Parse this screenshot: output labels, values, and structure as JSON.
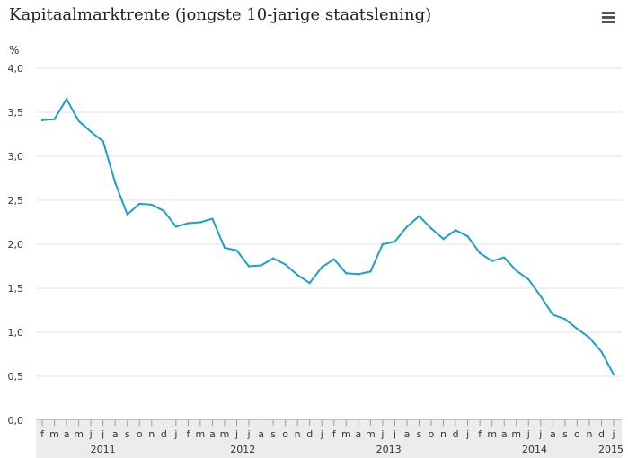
{
  "title": "Kapitaalmarktrente (jongste 10-jarige staatslening)",
  "menu_icon": "hamburger-menu-icon",
  "colors": {
    "line": "#1aa1c4",
    "grid": "#e3e3e3",
    "axis_band": "#ececec",
    "text": "#333333"
  },
  "chart_data": {
    "type": "line",
    "title": "Kapitaalmarktrente (jongste 10-jarige staatslening)",
    "ylabel": "%",
    "xlabel": "",
    "ylim": [
      0,
      4
    ],
    "yticks": [
      "0,0",
      "0,5",
      "1,0",
      "1,5",
      "2,0",
      "2,5",
      "3,0",
      "3,5",
      "4,0"
    ],
    "grid": true,
    "legend": "none",
    "months": [
      "f",
      "m",
      "a",
      "m",
      "j",
      "j",
      "a",
      "s",
      "o",
      "n",
      "d",
      "j",
      "f",
      "m",
      "a",
      "m",
      "j",
      "j",
      "a",
      "s",
      "o",
      "n",
      "d",
      "j",
      "f",
      "m",
      "a",
      "m",
      "j",
      "j",
      "a",
      "s",
      "o",
      "n",
      "d",
      "j",
      "f",
      "m",
      "a",
      "m",
      "j",
      "j",
      "a",
      "s",
      "o",
      "n",
      "d",
      "j"
    ],
    "years": [
      {
        "label": "2011",
        "start": 0,
        "count": 11
      },
      {
        "label": "2012",
        "start": 11,
        "count": 12
      },
      {
        "label": "2013",
        "start": 23,
        "count": 12
      },
      {
        "label": "2014",
        "start": 35,
        "count": 12
      },
      {
        "label": "2015",
        "start": 47,
        "count": 1
      }
    ],
    "series": [
      {
        "values": [
          3.41,
          3.42,
          3.65,
          3.4,
          3.28,
          3.17,
          2.7,
          2.34,
          2.46,
          2.45,
          2.38,
          2.2,
          2.24,
          2.25,
          2.29,
          1.96,
          1.93,
          1.75,
          1.76,
          1.84,
          1.77,
          1.65,
          1.56,
          1.74,
          1.83,
          1.67,
          1.66,
          1.69,
          2.0,
          2.03,
          2.2,
          2.32,
          2.18,
          2.06,
          2.16,
          2.09,
          1.9,
          1.81,
          1.85,
          1.7,
          1.6,
          1.41,
          1.2,
          1.15,
          1.04,
          0.94,
          0.78,
          0.52
        ]
      }
    ]
  }
}
